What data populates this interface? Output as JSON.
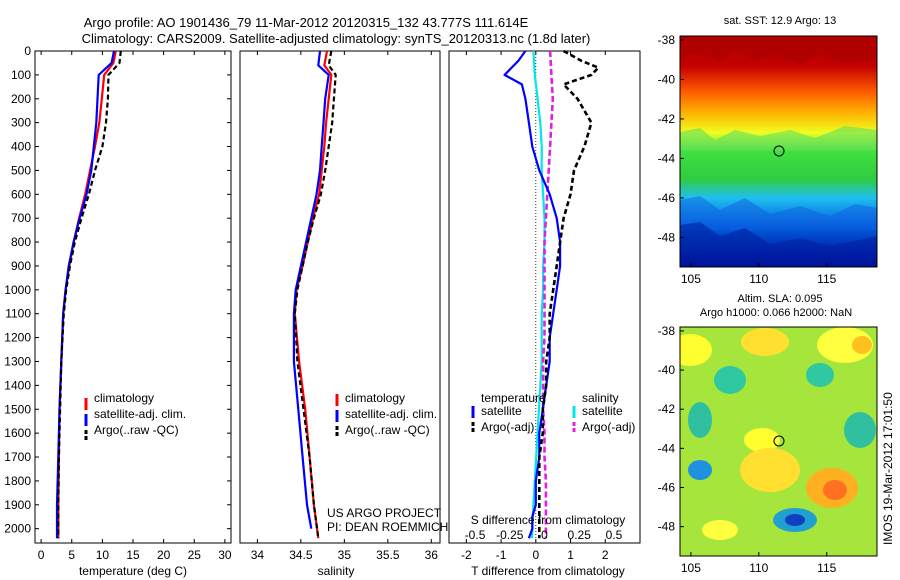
{
  "title": {
    "line1": "Argo profile: AO 1901436_79 11-Mar-2012 20120315_132 43.777S 111.614E",
    "line2": "Climatology: CARS2009. Satellite-adjusted climatology: synTS_20120313.nc (1.8d later)"
  },
  "depth_ticks": [
    0,
    100,
    200,
    300,
    400,
    500,
    600,
    700,
    800,
    900,
    1000,
    1100,
    1200,
    1300,
    1400,
    1500,
    1600,
    1700,
    1800,
    1900,
    2000
  ],
  "panels": {
    "temperature": {
      "xlabel": "temperature (deg C)",
      "xticks": [
        0,
        5,
        10,
        15,
        20,
        25,
        30
      ],
      "legend": [
        "climatology",
        "satellite-adj. clim.",
        "Argo(..raw -QC)"
      ]
    },
    "salinity": {
      "xlabel": "salinity",
      "xticks": [
        "34",
        "34.5",
        "35",
        "35.5",
        "36"
      ],
      "legend": [
        "climatology",
        "satellite-adj. clim.",
        "Argo(..raw -QC)"
      ],
      "credit1": "US ARGO PROJECT",
      "credit2": "PI: DEAN ROEMMICH"
    },
    "difference": {
      "xlabel": "T difference from climatology",
      "top_label": "S difference from climatology",
      "xticks": [
        "-2",
        "-1",
        "0",
        "1",
        "2"
      ],
      "sticks": [
        "-0.5",
        "-0.25",
        "0",
        "0.25",
        "0.5"
      ],
      "legend_temp_head": "temperature",
      "legend_sal_head": "salinity",
      "legend_temp": [
        "satellite",
        "Argo(-adj)"
      ],
      "legend_sal": [
        "satellite",
        "Argo(-adj)"
      ]
    }
  },
  "maps": {
    "sst_title": "sat. SST: 12.9  Argo: 13",
    "sla_title1": "Altim. SLA: 0.095",
    "sla_title2": "Argo h1000: 0.066 h2000: NaN",
    "lat_ticks": [
      "-38",
      "-40",
      "-42",
      "-44",
      "-46",
      "-48"
    ],
    "lon_ticks": [
      "105",
      "110",
      "115"
    ]
  },
  "timestamp": "IMOS 19-Mar-2012 17:01:50",
  "colors": {
    "climatology": "#ff0000",
    "satellite": "#0000ff",
    "argo": "#000000",
    "sal_satellite": "#00e5ee",
    "sal_argo": "#e020e0"
  },
  "chart_data": [
    {
      "type": "line",
      "xlabel": "temperature (deg C)",
      "ylabel": "",
      "xlim": [
        -1,
        31
      ],
      "ylim": [
        2060,
        0
      ],
      "series": [
        {
          "name": "climatology",
          "x": [
            12.2,
            11.8,
            10.3,
            9.9,
            9.5,
            8.8,
            8.0,
            7.2,
            6.2,
            5.3,
            4.6,
            4.0,
            3.6,
            3.3,
            3.0,
            2.9,
            2.8,
            2.8
          ],
          "y": [
            0,
            50,
            100,
            200,
            300,
            400,
            500,
            600,
            700,
            800,
            900,
            1000,
            1100,
            1300,
            1500,
            1700,
            1900,
            2040
          ]
        },
        {
          "name": "satellite-adj. clim.",
          "x": [
            11.9,
            11.5,
            9.4,
            9.2,
            9.0,
            8.6,
            8.2,
            7.4,
            6.3,
            5.3,
            4.5,
            4.0,
            3.6,
            3.3,
            3.0,
            2.8,
            2.6,
            2.6
          ],
          "y": [
            0,
            50,
            100,
            200,
            300,
            400,
            500,
            600,
            700,
            800,
            900,
            1000,
            1100,
            1300,
            1500,
            1700,
            1900,
            2040
          ]
        },
        {
          "name": "Argo(..raw -QC)",
          "x": [
            13.0,
            12.8,
            11.0,
            10.9,
            10.6,
            10.0,
            8.8,
            7.8,
            6.6,
            5.5,
            4.7,
            4.1,
            3.7,
            3.3,
            3.1,
            2.9,
            2.8,
            2.8
          ],
          "y": [
            0,
            50,
            100,
            200,
            300,
            400,
            500,
            600,
            700,
            800,
            900,
            1000,
            1100,
            1300,
            1500,
            1700,
            1900,
            2040
          ]
        }
      ]
    },
    {
      "type": "line",
      "xlabel": "salinity",
      "ylabel": "",
      "xlim": [
        33.8,
        36.1
      ],
      "ylim": [
        2060,
        0
      ],
      "series": [
        {
          "name": "climatology",
          "x": [
            34.8,
            34.77,
            34.85,
            34.82,
            34.79,
            34.77,
            34.74,
            34.71,
            34.64,
            34.58,
            34.52,
            34.45,
            34.43,
            34.48,
            34.55,
            34.6,
            34.65,
            34.7
          ],
          "y": [
            0,
            60,
            100,
            200,
            300,
            400,
            500,
            600,
            700,
            800,
            900,
            1000,
            1100,
            1300,
            1500,
            1700,
            1900,
            2040
          ]
        },
        {
          "name": "satellite-adj. clim.",
          "x": [
            34.72,
            34.7,
            34.82,
            34.78,
            34.76,
            34.74,
            34.72,
            34.68,
            34.62,
            34.56,
            34.5,
            34.44,
            34.42,
            34.42,
            34.47,
            34.52,
            34.57,
            34.62
          ],
          "y": [
            0,
            60,
            100,
            200,
            300,
            400,
            500,
            600,
            700,
            800,
            900,
            1000,
            1100,
            1300,
            1500,
            1700,
            1900,
            2000
          ]
        },
        {
          "name": "Argo(..raw -QC)",
          "x": [
            34.85,
            34.82,
            34.9,
            34.88,
            34.86,
            34.82,
            34.78,
            34.73,
            34.65,
            34.58,
            34.52,
            34.46,
            34.43,
            34.46,
            34.53,
            34.6,
            34.65,
            34.7
          ],
          "y": [
            0,
            60,
            100,
            200,
            300,
            400,
            500,
            600,
            700,
            800,
            900,
            1000,
            1100,
            1300,
            1500,
            1700,
            1900,
            2040
          ]
        }
      ]
    },
    {
      "type": "line",
      "xlabel": "T difference from climatology",
      "ylabel": "",
      "xlim": [
        -2.5,
        3
      ],
      "ylim": [
        2060,
        0
      ],
      "series": [
        {
          "name": "satellite",
          "x": [
            -0.3,
            -0.5,
            -0.9,
            -0.4,
            -0.3,
            -0.2,
            -0.1,
            0.1,
            0.4,
            0.6,
            0.7,
            0.7,
            0.6,
            0.5,
            0.4,
            0.4,
            0.3,
            0.2,
            0.1,
            0.1,
            0.0,
            0.0,
            -0.1,
            -0.1,
            -0.2
          ],
          "y": [
            0,
            40,
            100,
            140,
            200,
            300,
            400,
            500,
            600,
            700,
            800,
            900,
            1000,
            1100,
            1200,
            1300,
            1400,
            1500,
            1600,
            1700,
            1800,
            1900,
            1950,
            2000,
            2040
          ]
        },
        {
          "name": "Argo(-adj)",
          "x": [
            0.8,
            1.3,
            1.8,
            1.6,
            0.8,
            1.2,
            1.6,
            1.4,
            1.1,
            1.0,
            0.8,
            0.7,
            0.6,
            0.5,
            0.4,
            0.4,
            0.3,
            0.3,
            0.2,
            0.2,
            0.1,
            0.1,
            0.1,
            0.1
          ],
          "y": [
            0,
            40,
            70,
            100,
            140,
            200,
            300,
            400,
            500,
            600,
            700,
            800,
            900,
            1000,
            1100,
            1200,
            1300,
            1400,
            1500,
            1600,
            1700,
            1800,
            1900,
            2040
          ]
        }
      ]
    },
    {
      "type": "line",
      "xlabel": "S difference from climatology",
      "ylabel": "",
      "xlim": [
        -0.6875,
        0.6875
      ],
      "ylim": [
        2060,
        0
      ],
      "series": [
        {
          "name": "satellite",
          "x": [
            -0.08,
            -0.07,
            -0.05,
            -0.03,
            -0.02,
            -0.02,
            -0.01,
            0.0,
            0.0,
            -0.01,
            -0.01,
            -0.02,
            -0.02,
            -0.02,
            -0.03,
            -0.04,
            -0.05,
            -0.06,
            -0.07,
            -0.08,
            -0.09
          ],
          "y": [
            0,
            100,
            200,
            300,
            400,
            500,
            600,
            700,
            800,
            900,
            1000,
            1100,
            1200,
            1300,
            1400,
            1500,
            1600,
            1700,
            1800,
            1900,
            2040
          ]
        },
        {
          "name": "Argo(-adj)",
          "x": [
            0.04,
            0.05,
            0.06,
            0.05,
            0.04,
            0.03,
            0.02,
            0.01,
            0.0,
            0.0,
            0.0,
            0.0,
            0.0,
            -0.01,
            -0.01,
            -0.01,
            0.0,
            0.0,
            0.01,
            0.01
          ],
          "y": [
            0,
            100,
            200,
            300,
            400,
            500,
            600,
            700,
            800,
            900,
            1000,
            1100,
            1200,
            1300,
            1400,
            1500,
            1600,
            1700,
            1800,
            2040
          ]
        }
      ]
    }
  ]
}
